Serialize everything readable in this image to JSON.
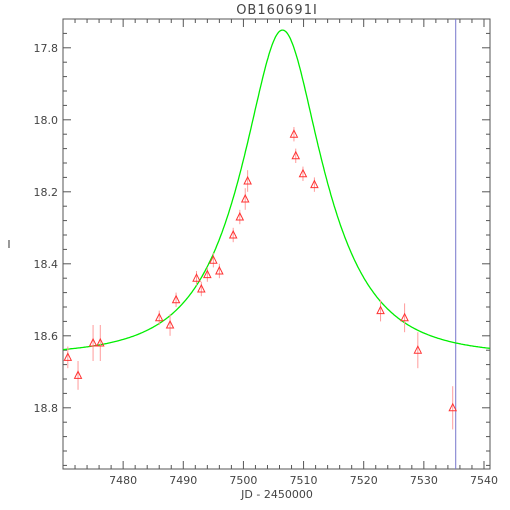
{
  "chart_data": {
    "type": "scatter",
    "title": "OB160691I",
    "xlabel": "JD - 2450000",
    "ylabel": "I",
    "xlim": [
      7470,
      7541
    ],
    "ylim": [
      18.97,
      17.72
    ],
    "y_inverted": true,
    "grid": false,
    "xticks": [
      7480,
      7490,
      7500,
      7510,
      7520,
      7530,
      7540
    ],
    "yticks": [
      17.8,
      18.0,
      18.2,
      18.4,
      18.6,
      18.8
    ],
    "colors": {
      "points": "#ff3333",
      "errorbars": "#ff9a9a",
      "model": "#00ee00",
      "marker_line": "#7777cc",
      "axes": "#555555"
    },
    "series": [
      {
        "marker": "triangle",
        "x": [
          7470.8,
          7472.5,
          7475.0,
          7476.2,
          7486.0,
          7487.8,
          7488.8,
          7492.2,
          7493.0,
          7494.0,
          7495.0,
          7496.0,
          7498.3,
          7499.4,
          7500.3,
          7500.7,
          7508.4,
          7508.7,
          7509.9,
          7511.8,
          7522.8,
          7526.8,
          7529.0,
          7534.8
        ],
        "y": [
          18.66,
          18.71,
          18.62,
          18.62,
          18.55,
          18.57,
          18.5,
          18.44,
          18.47,
          18.43,
          18.39,
          18.42,
          18.32,
          18.27,
          18.22,
          18.17,
          18.04,
          18.1,
          18.15,
          18.18,
          18.53,
          18.55,
          18.64,
          18.8
        ],
        "err": [
          0.03,
          0.04,
          0.05,
          0.05,
          0.02,
          0.03,
          0.02,
          0.02,
          0.02,
          0.02,
          0.02,
          0.02,
          0.02,
          0.02,
          0.03,
          0.03,
          0.02,
          0.02,
          0.02,
          0.02,
          0.03,
          0.04,
          0.05,
          0.06
        ]
      }
    ],
    "model": {
      "t0": 7506.5,
      "u0": 0.47,
      "tE": 12.0,
      "baseline": 18.655
    },
    "vertical_marker_x": 7535.3
  }
}
